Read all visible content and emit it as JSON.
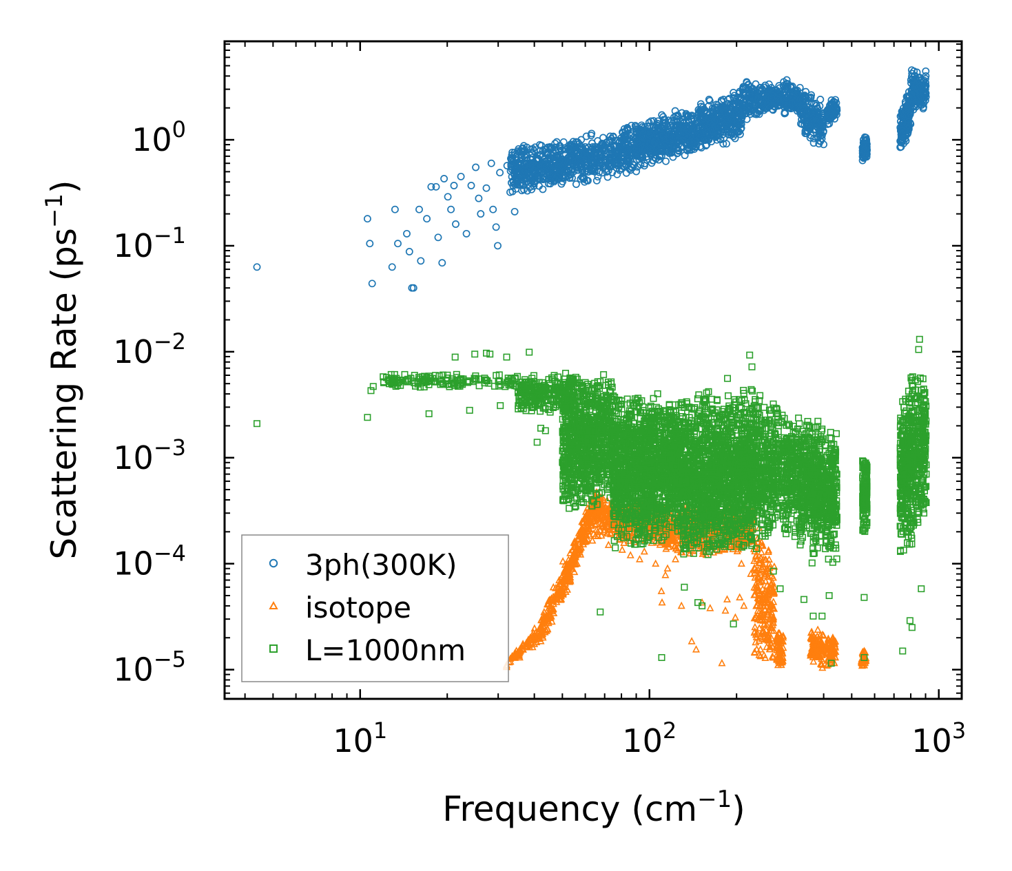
{
  "chart_data": {
    "type": "scatter",
    "xscale": "log",
    "yscale": "log",
    "xlim": [
      3.4,
      1200
    ],
    "ylim": [
      5.3e-06,
      8.5
    ],
    "xlabel": "Frequency (cm",
    "xlabel_sup": "−1",
    "xlabel_end": ")",
    "ylabel": "Scattering Rate (ps",
    "ylabel_sup": "−1",
    "ylabel_end": ")",
    "x_ticks": [
      {
        "value": 10,
        "base": "10",
        "exp": "1"
      },
      {
        "value": 100,
        "base": "10",
        "exp": "2"
      },
      {
        "value": 1000,
        "base": "10",
        "exp": "3"
      }
    ],
    "y_ticks": [
      {
        "value": 1,
        "base": "10",
        "exp": "0"
      },
      {
        "value": 0.1,
        "base": "10",
        "exp": "−1"
      },
      {
        "value": 0.01,
        "base": "10",
        "exp": "−2"
      },
      {
        "value": 0.001,
        "base": "10",
        "exp": "−3"
      },
      {
        "value": 0.0001,
        "base": "10",
        "exp": "−4"
      },
      {
        "value": 1e-05,
        "base": "10",
        "exp": "−5"
      }
    ],
    "legend_position": "lower-left",
    "series": [
      {
        "name": "3ph(300K)",
        "color": "#1f77b4",
        "marker": "circle",
        "points": [
          [
            4.4,
            0.063
          ],
          [
            10.6,
            0.18
          ],
          [
            10.8,
            0.105
          ],
          [
            11.0,
            0.044
          ],
          [
            13.2,
            0.22
          ],
          [
            13.5,
            0.105
          ],
          [
            12.9,
            0.063
          ],
          [
            14.5,
            0.13
          ],
          [
            14.8,
            0.088
          ],
          [
            15.1,
            0.04
          ],
          [
            15.3,
            0.04
          ],
          [
            16.0,
            0.22
          ],
          [
            16.2,
            0.072
          ],
          [
            17.0,
            0.18
          ],
          [
            17.6,
            0.36
          ],
          [
            18.3,
            0.36
          ],
          [
            18.6,
            0.12
          ],
          [
            19.2,
            0.069
          ],
          [
            19.5,
            0.43
          ],
          [
            20.1,
            0.29
          ],
          [
            20.6,
            0.22
          ],
          [
            21.1,
            0.37
          ],
          [
            21.4,
            0.16
          ],
          [
            22.3,
            0.45
          ],
          [
            23.3,
            0.13
          ],
          [
            24.2,
            0.37
          ],
          [
            25.1,
            0.55
          ],
          [
            25.7,
            0.28
          ],
          [
            26.1,
            0.2
          ],
          [
            27.3,
            0.35
          ],
          [
            28.4,
            0.6
          ],
          [
            28.8,
            0.22
          ],
          [
            29.5,
            0.15
          ],
          [
            29.9,
            0.1
          ],
          [
            30.4,
            0.49
          ],
          [
            32.2,
            0.57
          ],
          [
            33.0,
            0.32
          ],
          [
            33.6,
            0.68
          ],
          [
            34.2,
            0.21
          ],
          [
            35.3,
            0.82
          ]
        ],
        "clouds": [
          {
            "x": [
              33,
              80
            ],
            "y_lo": [
              0.28,
              0.45
            ],
            "y_hi": [
              0.85,
              1.35
            ],
            "n": 650
          },
          {
            "x": [
              80,
              210
            ],
            "y_lo": [
              0.45,
              1.0
            ],
            "y_hi": [
              1.35,
              3.1
            ],
            "n": 900
          },
          {
            "x": [
              210,
              285
            ],
            "y_lo": [
              1.4,
              2.0
            ],
            "y_hi": [
              3.9,
              3.3
            ],
            "n": 220
          },
          {
            "x": [
              290,
              330
            ],
            "y_lo": [
              1.6,
              1.8
            ],
            "y_hi": [
              4.3,
              3.0
            ],
            "n": 120
          },
          {
            "x": [
              330,
              400
            ],
            "y_lo": [
              1.2,
              0.7
            ],
            "y_hi": [
              3.3,
              2.5
            ],
            "n": 180
          },
          {
            "x": [
              410,
              445
            ],
            "y_lo": [
              1.3,
              1.6
            ],
            "y_hi": [
              2.4,
              2.6
            ],
            "n": 70
          },
          {
            "x": [
              545,
              565
            ],
            "y_lo": [
              0.62,
              0.62
            ],
            "y_hi": [
              1.15,
              1.15
            ],
            "n": 70
          },
          {
            "x": [
              735,
              800
            ],
            "y_lo": [
              0.7,
              1.1
            ],
            "y_hi": [
              2.2,
              3.0
            ],
            "n": 140
          },
          {
            "x": [
              800,
              905
            ],
            "y_lo": [
              1.6,
              2.0
            ],
            "y_hi": [
              4.8,
              4.6
            ],
            "n": 140
          }
        ]
      },
      {
        "name": "isotope",
        "color": "#ff7f0e",
        "marker": "triangle",
        "points": [
          [
            50.2,
            0.000105
          ],
          [
            61.0,
            0.00017
          ],
          [
            63.5,
            0.000165
          ],
          [
            72.2,
            0.00015
          ],
          [
            80.5,
            0.000135
          ],
          [
            86.0,
            0.00012
          ],
          [
            92.5,
            0.00011
          ],
          [
            96.0,
            0.00013
          ],
          [
            105.0,
            0.0001
          ],
          [
            110.0,
            5.5e-05
          ],
          [
            110.5,
            4.3e-05
          ],
          [
            113.5,
            7.8e-05
          ],
          [
            115.5,
            9e-05
          ],
          [
            123.0,
            0.00011
          ],
          [
            129.0,
            4e-05
          ],
          [
            140.0,
            1.85e-05
          ],
          [
            145.0,
            1.55e-05
          ],
          [
            152.0,
            4.3e-05
          ],
          [
            162.0,
            3.8e-05
          ],
          [
            178.0,
            1.15e-05
          ],
          [
            183.0,
            3.6e-05
          ],
          [
            185.5,
            4.6e-05
          ],
          [
            198.0,
            3.1e-05
          ],
          [
            205.0,
            4.8e-05
          ],
          [
            208.0,
            0.0001
          ],
          [
            212.0,
            4e-05
          ],
          [
            224.0,
            8e-05
          ]
        ],
        "clouds": [
          {
            "x": [
              32,
              42
            ],
            "y_lo": [
              1e-05,
              1.8e-05
            ],
            "y_hi": [
              1.2e-05,
              3e-05
            ],
            "n": 80
          },
          {
            "x": [
              42,
              52
            ],
            "y_lo": [
              1.6e-05,
              5.5e-05
            ],
            "y_hi": [
              3.5e-05,
              0.00011
            ],
            "n": 140
          },
          {
            "x": [
              52,
              64
            ],
            "y_lo": [
              5.5e-05,
              0.00022
            ],
            "y_hi": [
              0.00012,
              0.0005
            ],
            "n": 160
          },
          {
            "x": [
              64,
              78
            ],
            "y_lo": [
              0.00017,
              0.00018
            ],
            "y_hi": [
              0.00055,
              0.0004
            ],
            "n": 160
          },
          {
            "x": [
              78,
              100
            ],
            "y_lo": [
              0.00015,
              0.00016
            ],
            "y_hi": [
              0.0004,
              0.00038
            ],
            "n": 200
          },
          {
            "x": [
              100,
              150
            ],
            "y_lo": [
              0.00012,
              0.00012
            ],
            "y_hi": [
              0.00038,
              0.00035
            ],
            "n": 280
          },
          {
            "x": [
              150,
              230
            ],
            "y_lo": [
              0.00011,
              0.00013
            ],
            "y_hi": [
              0.00036,
              0.00036
            ],
            "n": 300
          },
          {
            "x": [
              230,
              270
            ],
            "y_lo": [
              1e-05,
              1e-05
            ],
            "y_hi": [
              0.00035,
              0.00013
            ],
            "n": 220
          },
          {
            "x": [
              275,
              290
            ],
            "y_lo": [
              1e-05,
              1e-05
            ],
            "y_hi": [
              2.5e-05,
              2.3e-05
            ],
            "n": 60
          },
          {
            "x": [
              360,
              400
            ],
            "y_lo": [
              1e-05,
              1e-05
            ],
            "y_hi": [
              2.5e-05,
              2.5e-05
            ],
            "n": 90
          },
          {
            "x": [
              410,
              440
            ],
            "y_lo": [
              1e-05,
              1e-05
            ],
            "y_hi": [
              2.3e-05,
              2.3e-05
            ],
            "n": 60
          },
          {
            "x": [
              540,
              560
            ],
            "y_lo": [
              1e-05,
              1e-05
            ],
            "y_hi": [
              1.6e-05,
              1.6e-05
            ],
            "n": 30
          }
        ]
      },
      {
        "name": "L=1000nm",
        "color": "#2ca02c",
        "marker": "square",
        "points": [
          [
            4.4,
            0.0021
          ],
          [
            10.6,
            0.0024
          ],
          [
            10.9,
            0.0043
          ],
          [
            11.1,
            0.0047
          ],
          [
            12.8,
            0.0061
          ],
          [
            13.1,
            0.0054
          ],
          [
            14.6,
            0.0055
          ],
          [
            16.4,
            0.0058
          ],
          [
            17.3,
            0.0026
          ],
          [
            18.9,
            0.0052
          ],
          [
            21.3,
            0.0089
          ],
          [
            23.9,
            0.0028
          ],
          [
            24.9,
            0.0095
          ],
          [
            27.3,
            0.0097
          ],
          [
            28.1,
            0.0095
          ],
          [
            30.5,
            0.0031
          ],
          [
            32.1,
            0.0089
          ],
          [
            35.2,
            0.0031
          ],
          [
            38.4,
            0.0099
          ],
          [
            42.1,
            0.0019
          ],
          [
            43.7,
            0.0018
          ],
          [
            40.9,
            0.0014
          ],
          [
            67.6,
            3.5e-05
          ],
          [
            110.2,
            1.3e-05
          ],
          [
            132.0,
            6e-05
          ],
          [
            147.0,
            4.3e-05
          ],
          [
            152.0,
            4e-05
          ],
          [
            195.0,
            2.7e-05
          ],
          [
            222.0,
            0.0093
          ],
          [
            226.0,
            0.0072
          ],
          [
            186.0,
            0.0056
          ],
          [
            160.0,
            0.0042
          ],
          [
            342.0,
            4.6e-05
          ],
          [
            368.0,
            3.2e-05
          ],
          [
            395.0,
            3.2e-05
          ],
          [
            418.0,
            5e-05
          ],
          [
            425.0,
            1.15e-05
          ],
          [
            552.0,
            1.3e-05
          ],
          [
            552.0,
            4.8e-05
          ],
          [
            750.0,
            1.5e-05
          ],
          [
            808.0,
            2.5e-05
          ],
          [
            795.0,
            2.9e-05
          ],
          [
            870.0,
            5.8e-05
          ],
          [
            858.0,
            0.0131
          ],
          [
            852.0,
            0.0105
          ],
          [
            888.0,
            0.0003
          ],
          [
            905.0,
            0.0007
          ],
          [
            283.0,
            5.8e-05
          ],
          [
            268.0,
            8.5e-05
          ]
        ],
        "clouds": [
          {
            "x": [
              12,
              35
            ],
            "y_lo": [
              0.0045,
              0.0045
            ],
            "y_hi": [
              0.0062,
              0.0062
            ],
            "n": 140
          },
          {
            "x": [
              35,
              55
            ],
            "y_lo": [
              0.0025,
              0.0028
            ],
            "y_hi": [
              0.006,
              0.0062
            ],
            "n": 260
          },
          {
            "x": [
              50,
              75
            ],
            "y_lo": [
              0.00025,
              0.0004
            ],
            "y_hi": [
              0.0065,
              0.0065
            ],
            "n": 900
          },
          {
            "x": [
              75,
              130
            ],
            "y_lo": [
              0.00012,
              0.00017
            ],
            "y_hi": [
              0.0045,
              0.0042
            ],
            "n": 1500
          },
          {
            "x": [
              130,
              230
            ],
            "y_lo": [
              0.0001,
              0.00012
            ],
            "y_hi": [
              0.0042,
              0.0045
            ],
            "n": 1600
          },
          {
            "x": [
              225,
              280
            ],
            "y_lo": [
              0.00012,
              0.0002
            ],
            "y_hi": [
              0.0045,
              0.0038
            ],
            "n": 400
          },
          {
            "x": [
              285,
              315
            ],
            "y_lo": [
              0.00013,
              0.00025
            ],
            "y_hi": [
              0.003,
              0.0028
            ],
            "n": 180
          },
          {
            "x": [
              318,
              360
            ],
            "y_lo": [
              0.00012,
              0.0002
            ],
            "y_hi": [
              0.0028,
              0.0026
            ],
            "n": 260
          },
          {
            "x": [
              360,
              400
            ],
            "y_lo": [
              8e-05,
              0.00018
            ],
            "y_hi": [
              0.0026,
              0.0024
            ],
            "n": 260
          },
          {
            "x": [
              405,
              445
            ],
            "y_lo": [
              9e-05,
              0.0001
            ],
            "y_hi": [
              0.0022,
              0.0021
            ],
            "n": 220
          },
          {
            "x": [
              545,
              565
            ],
            "y_lo": [
              0.00018,
              0.0002
            ],
            "y_hi": [
              0.0011,
              0.0011
            ],
            "n": 140
          },
          {
            "x": [
              735,
              800
            ],
            "y_lo": [
              0.00012,
              0.00015
            ],
            "y_hi": [
              0.0035,
              0.005
            ],
            "n": 280
          },
          {
            "x": [
              800,
              905
            ],
            "y_lo": [
              0.00012,
              0.0003
            ],
            "y_hi": [
              0.0072,
              0.0062
            ],
            "n": 300
          }
        ]
      }
    ]
  }
}
